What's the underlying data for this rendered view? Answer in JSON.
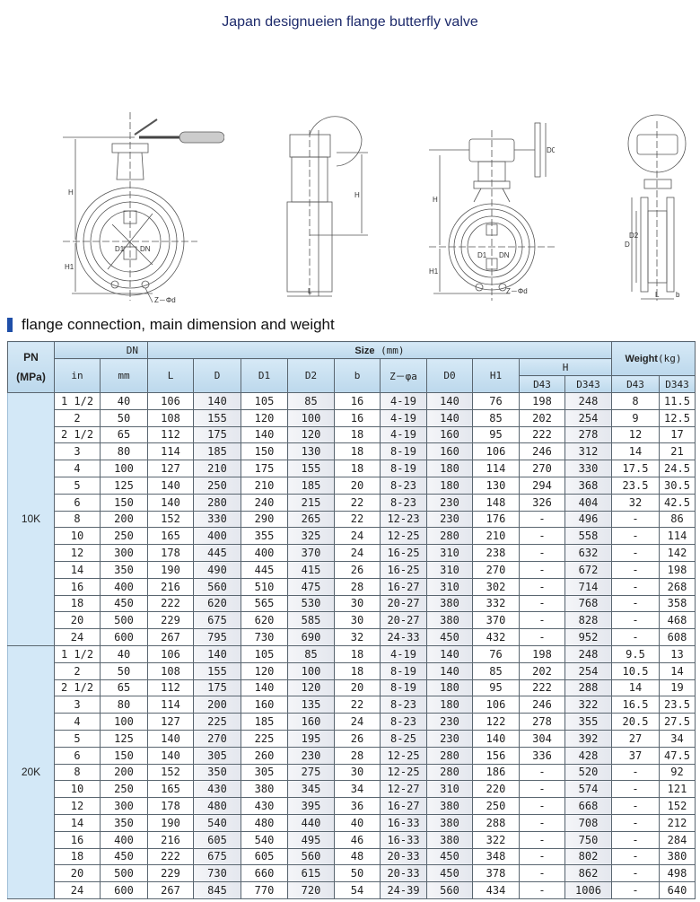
{
  "page_title": "Japan designueien flange butterfly valve",
  "drawings": {
    "handle_front": {
      "H": "H",
      "H1": "H1",
      "D1": "D1",
      "DN": "DN",
      "Zd": "Z－Φd"
    },
    "gear_side": {
      "H": "H",
      "L": "L"
    },
    "gear_front": {
      "H": "H",
      "H1": "H1",
      "D1": "D1",
      "DN": "DN",
      "D0": "D0",
      "Zd": "Z－Φd"
    },
    "gear_side2": {
      "D": "D",
      "D2": "D2",
      "L": "L",
      "b": "b"
    }
  },
  "section_title": "flange connection, main dimension and weight",
  "table": {
    "headers": {
      "pn": "PN",
      "pn_unit": "(MPa)",
      "dn": "DN",
      "size": "Size",
      "size_unit": "(mm)",
      "weight": "Weight",
      "weight_unit": "(kg)",
      "in": "in",
      "mm": "mm",
      "L": "L",
      "D": "D",
      "D1": "D1",
      "D2": "D2",
      "b": "b",
      "za": "Z－φa",
      "D0": "D0",
      "H1": "H1",
      "H": "H",
      "D43": "D43",
      "D343": "D343"
    },
    "groups": [
      {
        "pn": "10K",
        "rows": [
          [
            "1 1/2",
            "40",
            "106",
            "140",
            "105",
            "85",
            "16",
            "4-19",
            "140",
            "76",
            "198",
            "248",
            "8",
            "11.5"
          ],
          [
            "2",
            "50",
            "108",
            "155",
            "120",
            "100",
            "16",
            "4-19",
            "140",
            "85",
            "202",
            "254",
            "9",
            "12.5"
          ],
          [
            "2 1/2",
            "65",
            "112",
            "175",
            "140",
            "120",
            "18",
            "4-19",
            "160",
            "95",
            "222",
            "278",
            "12",
            "17"
          ],
          [
            "3",
            "80",
            "114",
            "185",
            "150",
            "130",
            "18",
            "8-19",
            "160",
            "106",
            "246",
            "312",
            "14",
            "21"
          ],
          [
            "4",
            "100",
            "127",
            "210",
            "175",
            "155",
            "18",
            "8-19",
            "180",
            "114",
            "270",
            "330",
            "17.5",
            "24.5"
          ],
          [
            "5",
            "125",
            "140",
            "250",
            "210",
            "185",
            "20",
            "8-23",
            "180",
            "130",
            "294",
            "368",
            "23.5",
            "30.5"
          ],
          [
            "6",
            "150",
            "140",
            "280",
            "240",
            "215",
            "22",
            "8-23",
            "230",
            "148",
            "326",
            "404",
            "32",
            "42.5"
          ],
          [
            "8",
            "200",
            "152",
            "330",
            "290",
            "265",
            "22",
            "12-23",
            "230",
            "176",
            "-",
            "496",
            "-",
            "86"
          ],
          [
            "10",
            "250",
            "165",
            "400",
            "355",
            "325",
            "24",
            "12-25",
            "280",
            "210",
            "-",
            "558",
            "-",
            "114"
          ],
          [
            "12",
            "300",
            "178",
            "445",
            "400",
            "370",
            "24",
            "16-25",
            "310",
            "238",
            "-",
            "632",
            "-",
            "142"
          ],
          [
            "14",
            "350",
            "190",
            "490",
            "445",
            "415",
            "26",
            "16-25",
            "310",
            "270",
            "-",
            "672",
            "-",
            "198"
          ],
          [
            "16",
            "400",
            "216",
            "560",
            "510",
            "475",
            "28",
            "16-27",
            "310",
            "302",
            "-",
            "714",
            "-",
            "268"
          ],
          [
            "18",
            "450",
            "222",
            "620",
            "565",
            "530",
            "30",
            "20-27",
            "380",
            "332",
            "-",
            "768",
            "-",
            "358"
          ],
          [
            "20",
            "500",
            "229",
            "675",
            "620",
            "585",
            "30",
            "20-27",
            "380",
            "370",
            "-",
            "828",
            "-",
            "468"
          ],
          [
            "24",
            "600",
            "267",
            "795",
            "730",
            "690",
            "32",
            "24-33",
            "450",
            "432",
            "-",
            "952",
            "-",
            "608"
          ]
        ]
      },
      {
        "pn": "20K",
        "rows": [
          [
            "1 1/2",
            "40",
            "106",
            "140",
            "105",
            "85",
            "18",
            "4-19",
            "140",
            "76",
            "198",
            "248",
            "9.5",
            "13"
          ],
          [
            "2",
            "50",
            "108",
            "155",
            "120",
            "100",
            "18",
            "8-19",
            "140",
            "85",
            "202",
            "254",
            "10.5",
            "14"
          ],
          [
            "2 1/2",
            "65",
            "112",
            "175",
            "140",
            "120",
            "20",
            "8-19",
            "180",
            "95",
            "222",
            "288",
            "14",
            "19"
          ],
          [
            "3",
            "80",
            "114",
            "200",
            "160",
            "135",
            "22",
            "8-23",
            "180",
            "106",
            "246",
            "322",
            "16.5",
            "23.5"
          ],
          [
            "4",
            "100",
            "127",
            "225",
            "185",
            "160",
            "24",
            "8-23",
            "230",
            "122",
            "278",
            "355",
            "20.5",
            "27.5"
          ],
          [
            "5",
            "125",
            "140",
            "270",
            "225",
            "195",
            "26",
            "8-25",
            "230",
            "140",
            "304",
            "392",
            "27",
            "34"
          ],
          [
            "6",
            "150",
            "140",
            "305",
            "260",
            "230",
            "28",
            "12-25",
            "280",
            "156",
            "336",
            "428",
            "37",
            "47.5"
          ],
          [
            "8",
            "200",
            "152",
            "350",
            "305",
            "275",
            "30",
            "12-25",
            "280",
            "186",
            "-",
            "520",
            "-",
            "92"
          ],
          [
            "10",
            "250",
            "165",
            "430",
            "380",
            "345",
            "34",
            "12-27",
            "310",
            "220",
            "-",
            "574",
            "-",
            "121"
          ],
          [
            "12",
            "300",
            "178",
            "480",
            "430",
            "395",
            "36",
            "16-27",
            "380",
            "250",
            "-",
            "668",
            "-",
            "152"
          ],
          [
            "14",
            "350",
            "190",
            "540",
            "480",
            "440",
            "40",
            "16-33",
            "380",
            "288",
            "-",
            "708",
            "-",
            "212"
          ],
          [
            "16",
            "400",
            "216",
            "605",
            "540",
            "495",
            "46",
            "16-33",
            "380",
            "322",
            "-",
            "750",
            "-",
            "284"
          ],
          [
            "18",
            "450",
            "222",
            "675",
            "605",
            "560",
            "48",
            "20-33",
            "450",
            "348",
            "-",
            "802",
            "-",
            "380"
          ],
          [
            "20",
            "500",
            "229",
            "730",
            "660",
            "615",
            "50",
            "20-33",
            "450",
            "378",
            "-",
            "862",
            "-",
            "498"
          ],
          [
            "24",
            "600",
            "267",
            "845",
            "770",
            "720",
            "54",
            "24-39",
            "560",
            "434",
            "-",
            "1006",
            "-",
            "640"
          ]
        ]
      }
    ]
  }
}
